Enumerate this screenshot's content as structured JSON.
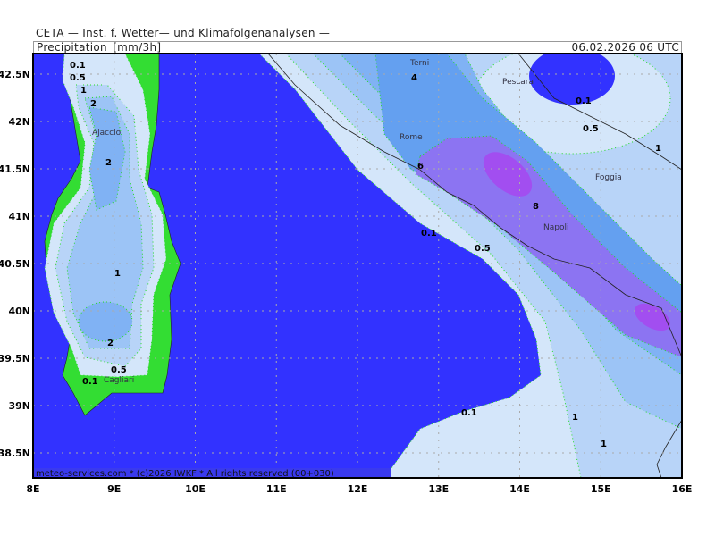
{
  "header": {
    "organization": "CETA — Inst. f. Wetter— und Klimafolgenanalysen —",
    "title": "Precipitation_[mm/3h]",
    "datetime": "06.02.2026 06 UTC"
  },
  "footer": "meteo-services.com * (c)2026 IWKF * All rights reserved (00+030)",
  "axes": {
    "lon_ticks": [
      "8E",
      "9E",
      "10E",
      "11E",
      "12E",
      "13E",
      "14E",
      "15E",
      "16E"
    ],
    "lat_ticks": [
      "42.5N",
      "42N",
      "41.5N",
      "41N",
      "40.5N",
      "40N",
      "39.5N",
      "39N",
      "38.5N"
    ]
  },
  "cities": {
    "terni": "Terni",
    "pescara": "Pescara",
    "rome": "Rome",
    "foggia": "Foggia",
    "napoli": "Napoli",
    "ajaccio": "Ajaccio",
    "cagliari": "Cagliari"
  },
  "contour_labels": [
    "0.1",
    "0.5",
    "1",
    "2",
    "4",
    "6",
    "8",
    "0.1",
    "0.5",
    "1",
    "0.1",
    "0.5",
    "1",
    "2",
    "1",
    "2",
    "0.5",
    "0.1",
    "0.1",
    "1"
  ],
  "colors": {
    "sea_no_precip": "#3232ff",
    "land_no_precip": "#33dd33",
    "p_0_1": "#d4e6fa",
    "p_0_5": "#b8d4f8",
    "p_1": "#9cc4f6",
    "p_2": "#80b2f4",
    "p_4": "#64a0f0",
    "p_6": "#8c74f2",
    "p_8": "#a24ef0",
    "contour_line": "#22dd22"
  }
}
